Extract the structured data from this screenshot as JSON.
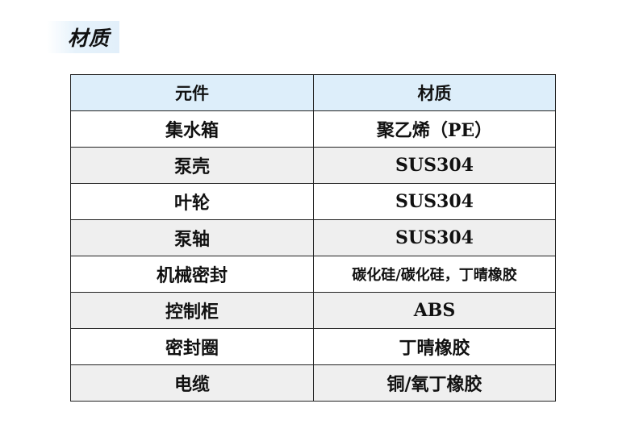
{
  "section_title": "材质",
  "table": {
    "headers": [
      "元件",
      "材质"
    ],
    "rows": [
      [
        "集水箱",
        "聚乙烯（PE）"
      ],
      [
        "泵壳",
        "SUS304"
      ],
      [
        "叶轮",
        "SUS304"
      ],
      [
        "泵轴",
        "SUS304"
      ],
      [
        "机械密封",
        "碳化硅/碳化硅，丁晴橡胶"
      ],
      [
        "控制柜",
        "ABS"
      ],
      [
        "密封圈",
        "丁晴橡胶"
      ],
      [
        "电缆",
        "铜/氧丁橡胶"
      ]
    ]
  },
  "colors": {
    "header_bg": "#ddeefa",
    "alt_row_bg": "#efefef",
    "border": "#222222"
  }
}
